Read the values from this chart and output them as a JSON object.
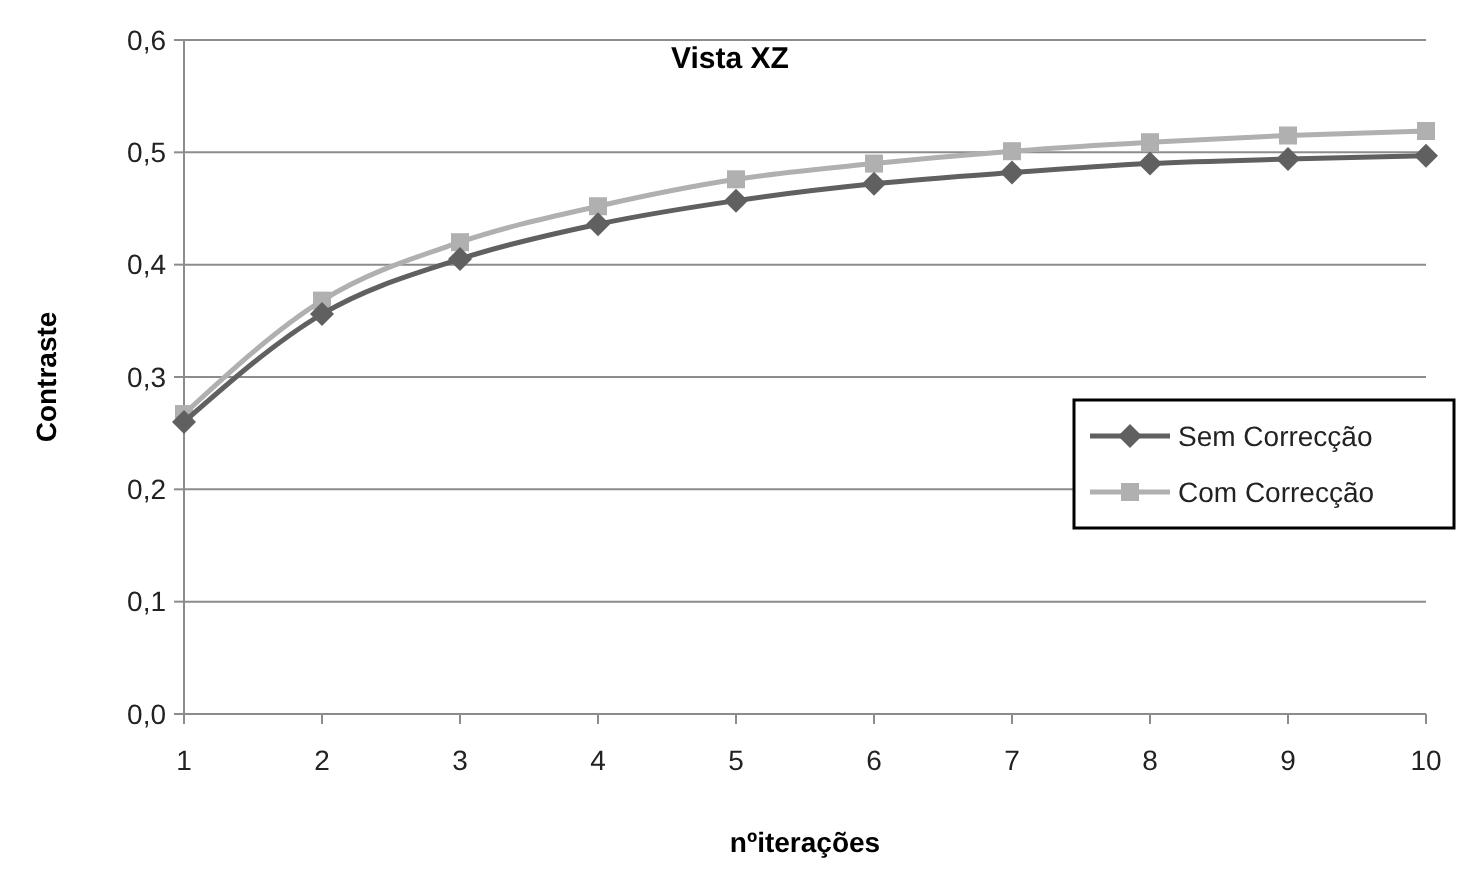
{
  "chart_data": {
    "type": "line",
    "title": "Vista XZ",
    "xlabel": "nºiterações",
    "ylabel": "Contraste",
    "x": [
      1,
      2,
      3,
      4,
      5,
      6,
      7,
      8,
      9,
      10
    ],
    "xlim": [
      1,
      10
    ],
    "xticks": [
      1,
      2,
      3,
      4,
      5,
      6,
      7,
      8,
      9,
      10
    ],
    "ylim": [
      0,
      0.6
    ],
    "yticks": [
      {
        "value": 0,
        "label": "0,0"
      },
      {
        "value": 0.1,
        "label": "0,1"
      },
      {
        "value": 0.2,
        "label": "0,2"
      },
      {
        "value": 0.3,
        "label": "0,3"
      },
      {
        "value": 0.4,
        "label": "0,4"
      },
      {
        "value": 0.5,
        "label": "0,5"
      },
      {
        "value": 0.6,
        "label": "0,6"
      }
    ],
    "grid": "y",
    "legend": "right",
    "line_style": "solid",
    "series": [
      {
        "name": "Sem Correcção",
        "color": "#606060",
        "marker": "diamond",
        "values": [
          0.26,
          0.356,
          0.405,
          0.436,
          0.457,
          0.472,
          0.482,
          0.49,
          0.494,
          0.497
        ]
      },
      {
        "name": "Com Correcção",
        "color": "#b0b0b0",
        "marker": "square",
        "values": [
          0.267,
          0.368,
          0.42,
          0.452,
          0.476,
          0.49,
          0.501,
          0.509,
          0.515,
          0.519
        ]
      }
    ]
  }
}
